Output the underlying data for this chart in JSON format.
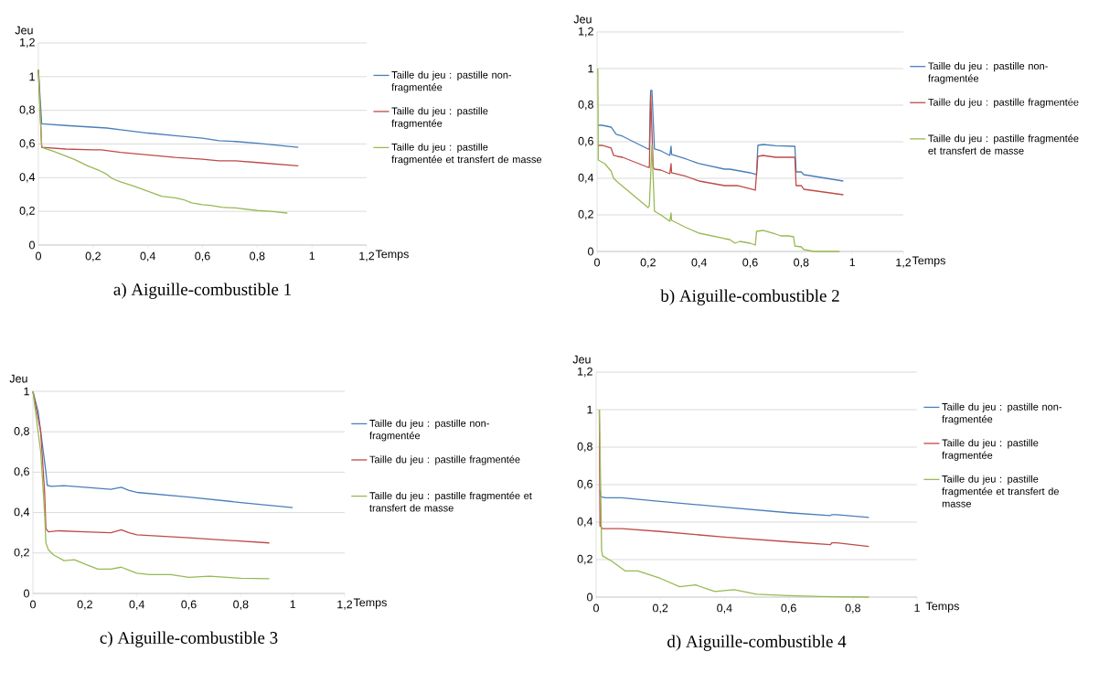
{
  "chart_data": [
    {
      "type": "line",
      "title": "a) Aiguille-combustible 1",
      "xlabel": "Temps",
      "ylabel": "Jeu",
      "grid": "y",
      "legend": "right",
      "xlim": [
        0,
        1.2
      ],
      "ylim": [
        0,
        1.2
      ],
      "xticks": [
        0,
        {
          "value": 0.2,
          "label": "0,2"
        },
        {
          "value": 0.4,
          "label": "0,4"
        },
        {
          "value": 0.6,
          "label": "0,6"
        },
        {
          "value": 0.8,
          "label": "0,8"
        },
        1,
        {
          "value": 1.2,
          "label": "1,2"
        }
      ],
      "yticks": [
        0,
        {
          "value": 0.2,
          "label": "0,2"
        },
        {
          "value": 0.4,
          "label": "0,4"
        },
        {
          "value": 0.6,
          "label": "0,6"
        },
        {
          "value": 0.8,
          "label": "0,8"
        },
        1,
        {
          "value": 1.2,
          "label": "1,2"
        }
      ],
      "series": [
        {
          "name": "Taille du jeu : pastille non-fragmentée",
          "color": "#4a7ebb",
          "x": [
            0,
            0.012,
            0.1,
            0.2,
            0.25,
            0.3,
            0.4,
            0.5,
            0.6,
            0.66,
            0.72,
            0.8,
            0.95
          ],
          "values": [
            1.04,
            0.72,
            0.71,
            0.7,
            0.695,
            0.685,
            0.665,
            0.65,
            0.635,
            0.62,
            0.615,
            0.605,
            0.58
          ]
        },
        {
          "name": "Taille du jeu : pastille fragmentée",
          "color": "#be4b48",
          "x": [
            0,
            0.012,
            0.1,
            0.2,
            0.23,
            0.3,
            0.4,
            0.5,
            0.6,
            0.66,
            0.72,
            0.8,
            0.95
          ],
          "values": [
            1.04,
            0.58,
            0.57,
            0.565,
            0.565,
            0.55,
            0.535,
            0.52,
            0.51,
            0.5,
            0.5,
            0.49,
            0.47
          ]
        },
        {
          "name": "Taille du jeu : pastille fragmentée et transfert de masse",
          "color": "#98b954",
          "x": [
            0,
            0.012,
            0.02,
            0.05,
            0.13,
            0.18,
            0.22,
            0.25,
            0.27,
            0.3,
            0.35,
            0.4,
            0.45,
            0.5,
            0.53,
            0.56,
            0.6,
            0.63,
            0.67,
            0.72,
            0.8,
            0.85,
            0.91
          ],
          "values": [
            1.04,
            0.59,
            0.575,
            0.56,
            0.51,
            0.47,
            0.445,
            0.42,
            0.395,
            0.375,
            0.35,
            0.32,
            0.29,
            0.28,
            0.27,
            0.25,
            0.24,
            0.235,
            0.225,
            0.22,
            0.205,
            0.2,
            0.19
          ]
        }
      ]
    },
    {
      "type": "line",
      "title": "b) Aiguille-combustible 2",
      "xlabel": "Temps",
      "ylabel": "Jeu",
      "grid": "y",
      "legend": "right",
      "xlim": [
        0,
        1.2
      ],
      "ylim": [
        0,
        1.2
      ],
      "xticks": [
        0,
        {
          "value": 0.2,
          "label": "0,2"
        },
        {
          "value": 0.4,
          "label": "0,4"
        },
        {
          "value": 0.6,
          "label": "0,6"
        },
        {
          "value": 0.8,
          "label": "0,8"
        },
        1,
        {
          "value": 1.2,
          "label": "1,2"
        }
      ],
      "yticks": [
        0,
        {
          "value": 0.2,
          "label": "0,2"
        },
        {
          "value": 0.4,
          "label": "0,4"
        },
        {
          "value": 0.6,
          "label": "0,6"
        },
        {
          "value": 0.8,
          "label": "0,8"
        },
        1,
        {
          "value": 1.2,
          "label": "1,2"
        }
      ],
      "series": [
        {
          "name": "Taille du jeu : pastille non-fragmentée",
          "color": "#4a7ebb",
          "x": [
            0.003,
            0.02,
            0.055,
            0.065,
            0.075,
            0.1,
            0.2,
            0.205,
            0.21,
            0.215,
            0.225,
            0.25,
            0.285,
            0.29,
            0.292,
            0.35,
            0.4,
            0.5,
            0.52,
            0.6,
            0.625,
            0.63,
            0.65,
            0.7,
            0.775,
            0.78,
            0.8,
            0.81,
            0.965
          ],
          "values": [
            0.69,
            0.69,
            0.68,
            0.66,
            0.64,
            0.63,
            0.56,
            0.56,
            0.88,
            0.88,
            0.56,
            0.55,
            0.525,
            0.575,
            0.53,
            0.505,
            0.48,
            0.45,
            0.45,
            0.43,
            0.42,
            0.58,
            0.585,
            0.578,
            0.575,
            0.435,
            0.435,
            0.42,
            0.385
          ]
        },
        {
          "name": "Taille du jeu : pastille fragmentée",
          "color": "#be4b48",
          "x": [
            0.003,
            0.02,
            0.055,
            0.065,
            0.08,
            0.1,
            0.2,
            0.205,
            0.21,
            0.22,
            0.225,
            0.25,
            0.285,
            0.29,
            0.292,
            0.35,
            0.4,
            0.5,
            0.55,
            0.62,
            0.63,
            0.65,
            0.7,
            0.775,
            0.78,
            0.8,
            0.81,
            0.965
          ],
          "values": [
            0.58,
            0.58,
            0.565,
            0.525,
            0.52,
            0.515,
            0.46,
            0.46,
            0.86,
            0.46,
            0.45,
            0.445,
            0.425,
            0.48,
            0.43,
            0.41,
            0.385,
            0.36,
            0.36,
            0.335,
            0.52,
            0.525,
            0.515,
            0.515,
            0.36,
            0.36,
            0.34,
            0.31
          ]
        },
        {
          "name": "Taille du jeu : pastille fragmentée et transfert de masse",
          "color": "#98b954",
          "x": [
            0.003,
            0.005,
            0.03,
            0.055,
            0.065,
            0.08,
            0.2,
            0.205,
            0.215,
            0.225,
            0.25,
            0.285,
            0.29,
            0.292,
            0.35,
            0.4,
            0.5,
            0.52,
            0.54,
            0.56,
            0.6,
            0.62,
            0.625,
            0.65,
            0.7,
            0.72,
            0.75,
            0.77,
            0.775,
            0.8,
            0.81,
            0.85,
            0.95
          ],
          "values": [
            1.0,
            0.5,
            0.48,
            0.44,
            0.4,
            0.38,
            0.24,
            0.25,
            0.58,
            0.22,
            0.2,
            0.165,
            0.21,
            0.17,
            0.13,
            0.1,
            0.07,
            0.065,
            0.045,
            0.055,
            0.045,
            0.035,
            0.11,
            0.115,
            0.095,
            0.085,
            0.085,
            0.08,
            0.03,
            0.025,
            0.01,
            0.0,
            0.0
          ]
        }
      ]
    },
    {
      "type": "line",
      "title": "c) Aiguille-combustible 3",
      "xlabel": "Temps",
      "ylabel": "Jeu",
      "grid": "y",
      "legend": "right",
      "xlim": [
        0,
        1.2
      ],
      "ylim": [
        0,
        1
      ],
      "xticks": [
        0,
        {
          "value": 0.2,
          "label": "0,2"
        },
        {
          "value": 0.4,
          "label": "0,4"
        },
        {
          "value": 0.6,
          "label": "0,6"
        },
        {
          "value": 0.8,
          "label": "0,8"
        },
        1,
        {
          "value": 1.2,
          "label": "1,2"
        }
      ],
      "yticks": [
        0,
        {
          "value": 0.2,
          "label": "0,2"
        },
        {
          "value": 0.4,
          "label": "0,4"
        },
        {
          "value": 0.6,
          "label": "0,6"
        },
        {
          "value": 0.8,
          "label": "0,8"
        },
        1
      ],
      "series": [
        {
          "name": "Taille du jeu : pastille non-fragmentée",
          "color": "#4a7ebb",
          "x": [
            0,
            0.02,
            0.04,
            0.05,
            0.055,
            0.07,
            0.12,
            0.2,
            0.3,
            0.34,
            0.37,
            0.4,
            0.6,
            0.8,
            1.0
          ],
          "values": [
            1.0,
            0.9,
            0.7,
            0.6,
            0.535,
            0.53,
            0.533,
            0.525,
            0.515,
            0.525,
            0.51,
            0.5,
            0.477,
            0.45,
            0.425
          ]
        },
        {
          "name": "Taille du jeu : pastille fragmentée",
          "color": "#be4b48",
          "x": [
            0,
            0.03,
            0.045,
            0.05,
            0.06,
            0.1,
            0.2,
            0.3,
            0.34,
            0.37,
            0.4,
            0.6,
            0.91
          ],
          "values": [
            1.0,
            0.8,
            0.5,
            0.32,
            0.305,
            0.31,
            0.305,
            0.3,
            0.315,
            0.3,
            0.29,
            0.275,
            0.25
          ]
        },
        {
          "name": "Taille du jeu : pastille fragmentée et transfert de masse",
          "color": "#98b954",
          "x": [
            0,
            0.03,
            0.045,
            0.05,
            0.06,
            0.08,
            0.12,
            0.16,
            0.2,
            0.25,
            0.3,
            0.34,
            0.37,
            0.4,
            0.45,
            0.53,
            0.6,
            0.68,
            0.8,
            0.91
          ],
          "values": [
            1.0,
            0.7,
            0.4,
            0.25,
            0.215,
            0.19,
            0.162,
            0.167,
            0.145,
            0.12,
            0.12,
            0.13,
            0.115,
            0.1,
            0.093,
            0.093,
            0.08,
            0.085,
            0.075,
            0.073
          ]
        }
      ]
    },
    {
      "type": "line",
      "title": "d) Aiguille-combustible 4",
      "xlabel": "Temps",
      "ylabel": "Jeu",
      "grid": "y",
      "legend": "right",
      "xlim": [
        0,
        1
      ],
      "ylim": [
        0,
        1.2
      ],
      "xticks": [
        0,
        {
          "value": 0.2,
          "label": "0,2"
        },
        {
          "value": 0.4,
          "label": "0,4"
        },
        {
          "value": 0.6,
          "label": "0,6"
        },
        {
          "value": 0.8,
          "label": "0,8"
        },
        1
      ],
      "yticks": [
        0,
        {
          "value": 0.2,
          "label": "0,2"
        },
        {
          "value": 0.4,
          "label": "0,4"
        },
        {
          "value": 0.6,
          "label": "0,6"
        },
        {
          "value": 0.8,
          "label": "0,8"
        },
        1,
        {
          "value": 1.2,
          "label": "1,2"
        }
      ],
      "series": [
        {
          "name": "Taille du jeu : pastille non-fragmentée",
          "color": "#4a7ebb",
          "x": [
            0.012,
            0.015,
            0.03,
            0.08,
            0.2,
            0.4,
            0.6,
            0.73,
            0.735,
            0.75,
            0.85
          ],
          "values": [
            0.57,
            0.535,
            0.53,
            0.53,
            0.51,
            0.48,
            0.45,
            0.435,
            0.44,
            0.44,
            0.425
          ]
        },
        {
          "name": "Taille du jeu : pastille fragmentée",
          "color": "#be4b48",
          "x": [
            0.01,
            0.012,
            0.02,
            0.08,
            0.2,
            0.4,
            0.6,
            0.73,
            0.735,
            0.75,
            0.85
          ],
          "values": [
            1.0,
            0.38,
            0.365,
            0.365,
            0.35,
            0.32,
            0.295,
            0.28,
            0.29,
            0.29,
            0.27
          ]
        },
        {
          "name": "Taille du jeu : pastille fragmentée et transfert de masse",
          "color": "#98b954",
          "x": [
            0.01,
            0.015,
            0.017,
            0.02,
            0.05,
            0.09,
            0.13,
            0.2,
            0.26,
            0.31,
            0.37,
            0.43,
            0.5,
            0.6,
            0.7,
            0.85
          ],
          "values": [
            1.0,
            0.5,
            0.25,
            0.22,
            0.19,
            0.14,
            0.14,
            0.1,
            0.055,
            0.065,
            0.03,
            0.04,
            0.015,
            0.008,
            0.003,
            0.0
          ]
        }
      ]
    }
  ]
}
